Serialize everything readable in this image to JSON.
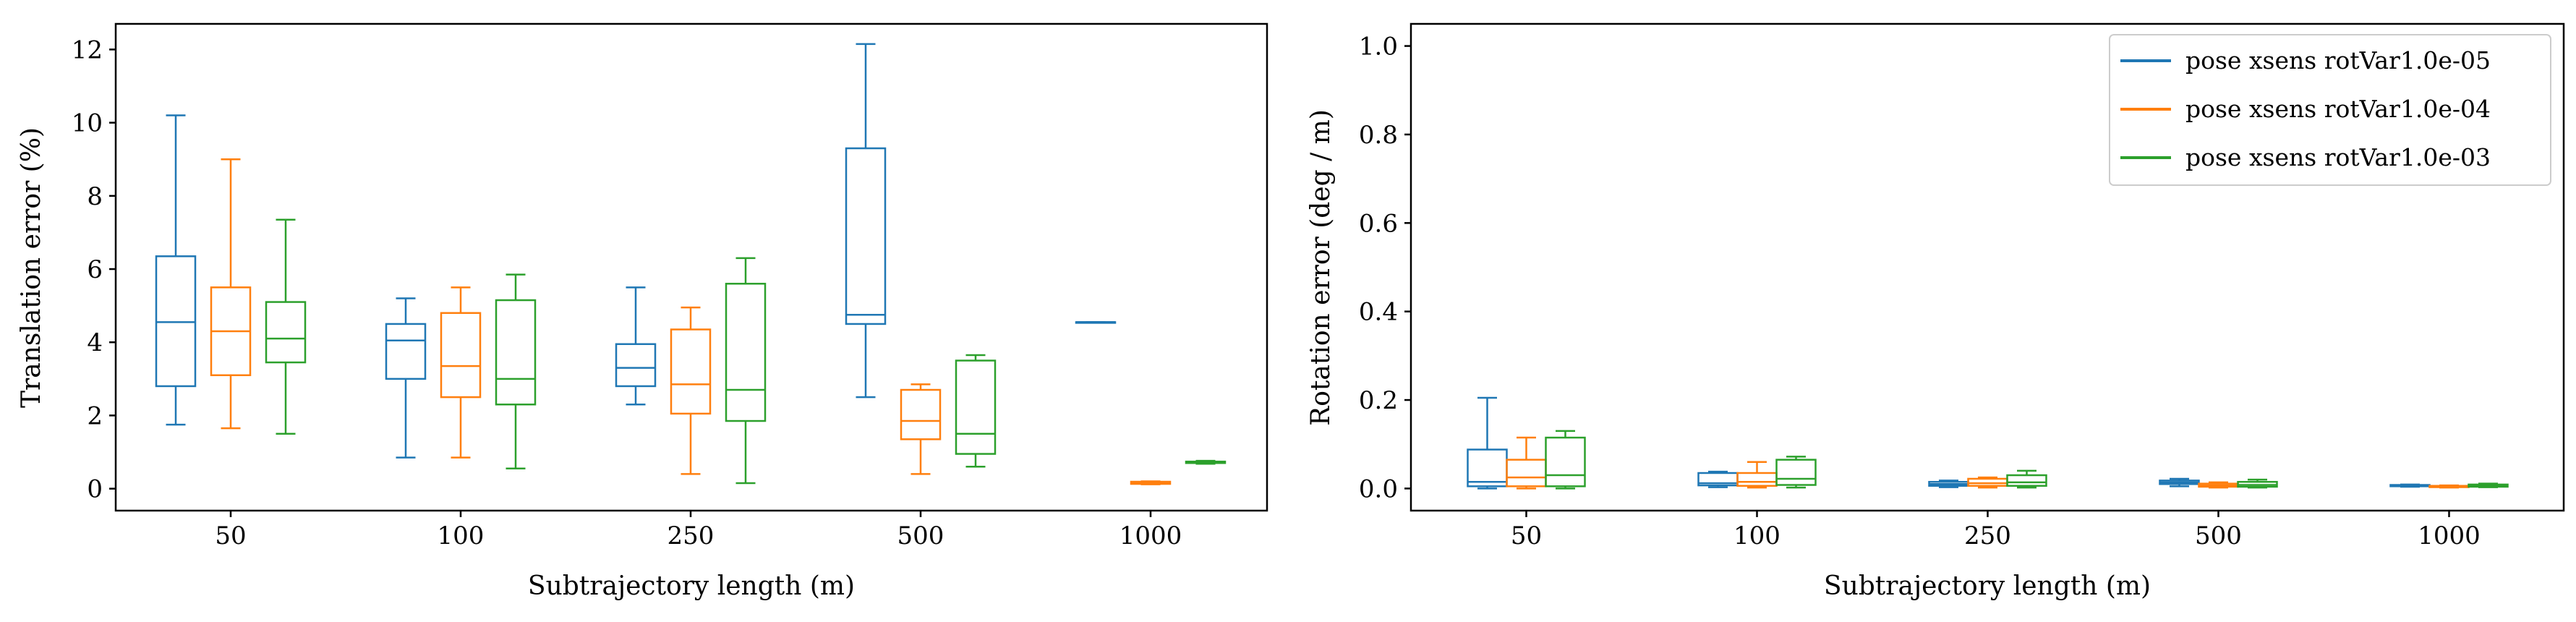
{
  "chart_data": [
    {
      "type": "box",
      "xlabel": "Subtrajectory length (m)",
      "ylabel": "Translation error (%)",
      "categories": [
        "50",
        "100",
        "250",
        "500",
        "1000"
      ],
      "ylim": [
        -0.6,
        12.7
      ],
      "yticks": [
        0,
        2,
        4,
        6,
        8,
        10,
        12
      ],
      "grid": false,
      "series": [
        {
          "name": "pose xsens rotVar1.0e-05",
          "color": "#1f77b4",
          "boxes": [
            {
              "whislo": 1.75,
              "q1": 2.8,
              "med": 4.55,
              "q3": 6.35,
              "whishi": 10.2
            },
            {
              "whislo": 0.85,
              "q1": 3.0,
              "med": 4.05,
              "q3": 4.5,
              "whishi": 5.2
            },
            {
              "whislo": 2.3,
              "q1": 2.8,
              "med": 3.3,
              "q3": 3.95,
              "whishi": 5.5
            },
            {
              "whislo": 2.5,
              "q1": 4.5,
              "med": 4.75,
              "q3": 9.3,
              "whishi": 12.15
            },
            {
              "whislo": 4.55,
              "q1": 4.55,
              "med": 4.55,
              "q3": 4.55,
              "whishi": 4.55
            }
          ]
        },
        {
          "name": "pose xsens rotVar1.0e-04",
          "color": "#ff7f0e",
          "boxes": [
            {
              "whislo": 1.65,
              "q1": 3.1,
              "med": 4.3,
              "q3": 5.5,
              "whishi": 9.0
            },
            {
              "whislo": 0.85,
              "q1": 2.5,
              "med": 3.35,
              "q3": 4.8,
              "whishi": 5.5
            },
            {
              "whislo": 0.4,
              "q1": 2.05,
              "med": 2.85,
              "q3": 4.35,
              "whishi": 4.95
            },
            {
              "whislo": 0.4,
              "q1": 1.35,
              "med": 1.85,
              "q3": 2.7,
              "whishi": 2.85
            },
            {
              "whislo": 0.12,
              "q1": 0.13,
              "med": 0.16,
              "q3": 0.19,
              "whishi": 0.2
            }
          ]
        },
        {
          "name": "pose xsens rotVar1.0e-03",
          "color": "#2ca02c",
          "boxes": [
            {
              "whislo": 1.5,
              "q1": 3.45,
              "med": 4.1,
              "q3": 5.1,
              "whishi": 7.35
            },
            {
              "whislo": 0.55,
              "q1": 2.3,
              "med": 3.0,
              "q3": 5.15,
              "whishi": 5.85
            },
            {
              "whislo": 0.15,
              "q1": 1.85,
              "med": 2.7,
              "q3": 5.6,
              "whishi": 6.3
            },
            {
              "whislo": 0.6,
              "q1": 0.95,
              "med": 1.5,
              "q3": 3.5,
              "whishi": 3.65
            },
            {
              "whislo": 0.68,
              "q1": 0.7,
              "med": 0.72,
              "q3": 0.74,
              "whishi": 0.76
            }
          ]
        }
      ]
    },
    {
      "type": "box",
      "xlabel": "Subtrajectory length (m)",
      "ylabel": "Rotation error (deg / m)",
      "categories": [
        "50",
        "100",
        "250",
        "500",
        "1000"
      ],
      "ylim": [
        -0.05,
        1.05
      ],
      "yticks": [
        0.0,
        0.2,
        0.4,
        0.6,
        0.8,
        1.0
      ],
      "grid": false,
      "legend": "top-right",
      "series": [
        {
          "name": "pose xsens rotVar1.0e-05",
          "color": "#1f77b4",
          "boxes": [
            {
              "whislo": 0.0,
              "q1": 0.005,
              "med": 0.015,
              "q3": 0.088,
              "whishi": 0.205
            },
            {
              "whislo": 0.003,
              "q1": 0.007,
              "med": 0.012,
              "q3": 0.035,
              "whishi": 0.038
            },
            {
              "whislo": 0.003,
              "q1": 0.006,
              "med": 0.01,
              "q3": 0.015,
              "whishi": 0.018
            },
            {
              "whislo": 0.005,
              "q1": 0.01,
              "med": 0.014,
              "q3": 0.018,
              "whishi": 0.022
            },
            {
              "whislo": 0.004,
              "q1": 0.005,
              "med": 0.006,
              "q3": 0.008,
              "whishi": 0.009
            }
          ]
        },
        {
          "name": "pose xsens rotVar1.0e-04",
          "color": "#ff7f0e",
          "boxes": [
            {
              "whislo": 0.0,
              "q1": 0.005,
              "med": 0.025,
              "q3": 0.065,
              "whishi": 0.115
            },
            {
              "whislo": 0.002,
              "q1": 0.006,
              "med": 0.015,
              "q3": 0.035,
              "whishi": 0.06
            },
            {
              "whislo": 0.002,
              "q1": 0.006,
              "med": 0.012,
              "q3": 0.022,
              "whishi": 0.025
            },
            {
              "whislo": 0.002,
              "q1": 0.004,
              "med": 0.007,
              "q3": 0.011,
              "whishi": 0.014
            },
            {
              "whislo": 0.002,
              "q1": 0.003,
              "med": 0.004,
              "q3": 0.006,
              "whishi": 0.007
            }
          ]
        },
        {
          "name": "pose xsens rotVar1.0e-03",
          "color": "#2ca02c",
          "boxes": [
            {
              "whislo": 0.0,
              "q1": 0.005,
              "med": 0.03,
              "q3": 0.115,
              "whishi": 0.13
            },
            {
              "whislo": 0.002,
              "q1": 0.008,
              "med": 0.022,
              "q3": 0.065,
              "whishi": 0.072
            },
            {
              "whislo": 0.002,
              "q1": 0.006,
              "med": 0.014,
              "q3": 0.03,
              "whishi": 0.04
            },
            {
              "whislo": 0.002,
              "q1": 0.004,
              "med": 0.008,
              "q3": 0.015,
              "whishi": 0.02
            },
            {
              "whislo": 0.003,
              "q1": 0.004,
              "med": 0.006,
              "q3": 0.009,
              "whishi": 0.011
            }
          ]
        }
      ]
    }
  ]
}
